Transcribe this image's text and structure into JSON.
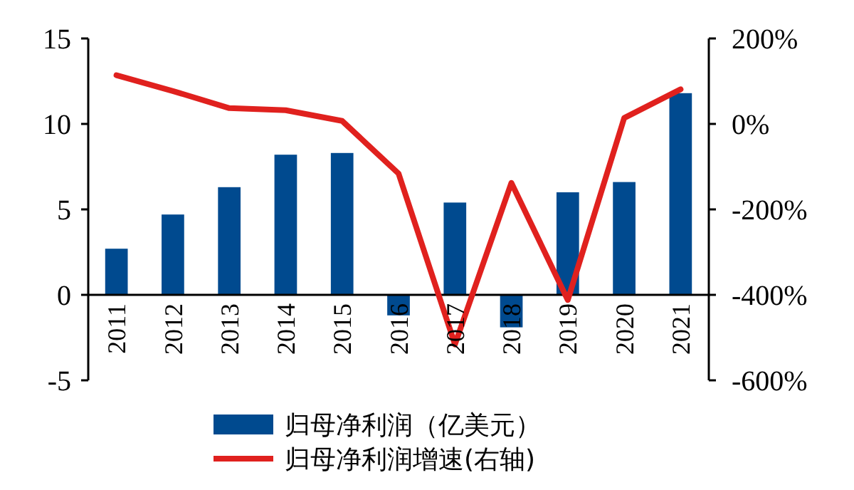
{
  "chart_data": {
    "type": "bar",
    "categories": [
      "2011",
      "2012",
      "2013",
      "2014",
      "2015",
      "2016",
      "2017",
      "2018",
      "2019",
      "2020",
      "2021"
    ],
    "series": [
      {
        "name": "归母净利润（亿美元）",
        "color": "#004a8f",
        "values": [
          2.7,
          4.7,
          6.3,
          8.2,
          8.3,
          -1.2,
          5.4,
          -1.9,
          6.0,
          6.6,
          11.8
        ]
      },
      {
        "name": "归母净利润增速(右轴)",
        "type": "line",
        "axis": "y2",
        "color": "#e0211e",
        "values": [
          114,
          77,
          37,
          32,
          7,
          -116,
          -516,
          -138,
          -412,
          14,
          81
        ]
      }
    ],
    "ylim": [
      -5,
      15
    ],
    "yticks": [
      -5,
      0,
      5,
      10,
      15
    ],
    "y2lim": [
      -600,
      200
    ],
    "y2ticks": [
      {
        "value": -600,
        "label": "-600%"
      },
      {
        "value": -400,
        "label": "-400%"
      },
      {
        "value": -200,
        "label": "-200%"
      },
      {
        "value": 0,
        "label": "0%"
      },
      {
        "value": 200,
        "label": "200%"
      }
    ],
    "legend": "bottom",
    "grid": false
  }
}
